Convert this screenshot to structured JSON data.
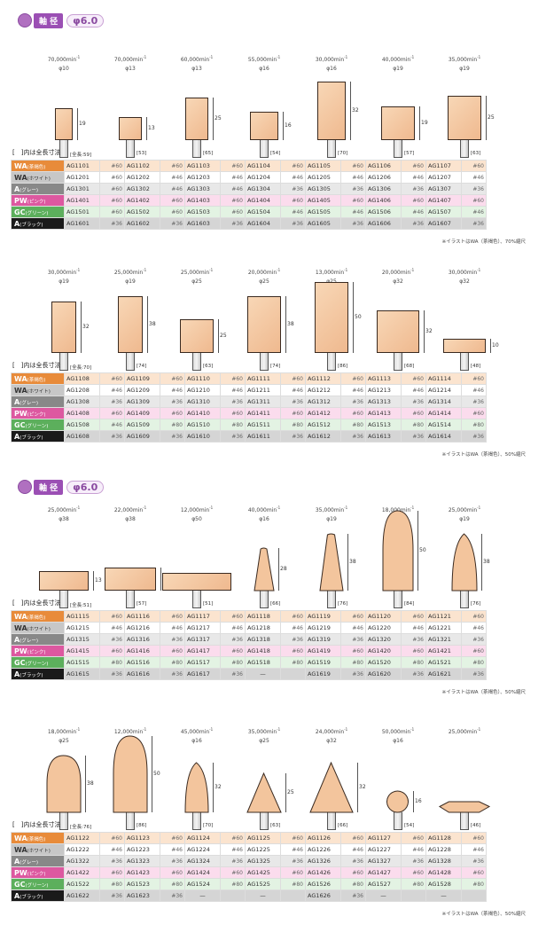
{
  "header": {
    "tag": "軸 径",
    "diameter": "φ6.0"
  },
  "note": "[　]内は全長寸法",
  "rows": [
    {
      "cls": "r-wa",
      "label": "WA",
      "sub": "(茶褐色)"
    },
    {
      "cls": "r-wh",
      "label": "WA",
      "sub": "(ホワイト)"
    },
    {
      "cls": "r-gr",
      "label": "A",
      "sub": "(グレー)"
    },
    {
      "cls": "r-pw",
      "label": "PW",
      "sub": "(ピンク)"
    },
    {
      "cls": "r-gc",
      "label": "GC",
      "sub": "(グリーン)"
    },
    {
      "cls": "r-bk",
      "label": "A",
      "sub": "(ブラック)"
    }
  ],
  "sections": [
    {
      "footer": "※イラストはWA（茶褐色）、70%縮尺",
      "items": [
        {
          "rpm": "70,000min",
          "d": "φ10",
          "h": "19",
          "total": "[全長:59]",
          "codes": [
            [
              "AG1101",
              "#60"
            ],
            [
              "AG1201",
              "#60"
            ],
            [
              "AG1301",
              "#60"
            ],
            [
              "AG1401",
              "#60"
            ],
            [
              "AG1501",
              "#60"
            ],
            [
              "AG1601",
              "#36"
            ]
          ]
        },
        {
          "rpm": "70,000min",
          "d": "φ13",
          "h": "13",
          "total": "[53]",
          "codes": [
            [
              "AG1102",
              "#60"
            ],
            [
              "AG1202",
              "#46"
            ],
            [
              "AG1302",
              "#46"
            ],
            [
              "AG1402",
              "#60"
            ],
            [
              "AG1502",
              "#60"
            ],
            [
              "AG1602",
              "#36"
            ]
          ]
        },
        {
          "rpm": "60,000min",
          "d": "φ13",
          "h": "25",
          "total": "[65]",
          "codes": [
            [
              "AG1103",
              "#60"
            ],
            [
              "AG1203",
              "#46"
            ],
            [
              "AG1303",
              "#46"
            ],
            [
              "AG1403",
              "#60"
            ],
            [
              "AG1503",
              "#60"
            ],
            [
              "AG1603",
              "#36"
            ]
          ]
        },
        {
          "rpm": "55,000min",
          "d": "φ16",
          "h": "16",
          "total": "[54]",
          "codes": [
            [
              "AG1104",
              "#60"
            ],
            [
              "AG1204",
              "#46"
            ],
            [
              "AG1304",
              "#36"
            ],
            [
              "AG1404",
              "#60"
            ],
            [
              "AG1504",
              "#46"
            ],
            [
              "AG1604",
              "#36"
            ]
          ]
        },
        {
          "rpm": "30,000min",
          "d": "φ16",
          "h": "32",
          "total": "[70]",
          "codes": [
            [
              "AG1105",
              "#60"
            ],
            [
              "AG1205",
              "#46"
            ],
            [
              "AG1305",
              "#36"
            ],
            [
              "AG1405",
              "#60"
            ],
            [
              "AG1505",
              "#46"
            ],
            [
              "AG1605",
              "#36"
            ]
          ]
        },
        {
          "rpm": "40,000min",
          "d": "φ19",
          "h": "19",
          "total": "[57]",
          "codes": [
            [
              "AG1106",
              "#60"
            ],
            [
              "AG1206",
              "#46"
            ],
            [
              "AG1306",
              "#36"
            ],
            [
              "AG1406",
              "#60"
            ],
            [
              "AG1506",
              "#46"
            ],
            [
              "AG1606",
              "#36"
            ]
          ]
        },
        {
          "rpm": "35,000min",
          "d": "φ19",
          "h": "25",
          "total": "[63]",
          "codes": [
            [
              "AG1107",
              "#60"
            ],
            [
              "AG1207",
              "#46"
            ],
            [
              "AG1307",
              "#36"
            ],
            [
              "AG1407",
              "#60"
            ],
            [
              "AG1507",
              "#46"
            ],
            [
              "AG1607",
              "#36"
            ]
          ]
        }
      ]
    },
    {
      "footer": "※イラストはWA（茶褐色）、50%縮尺",
      "items": [
        {
          "rpm": "30,000min",
          "d": "φ19",
          "h": "32",
          "total": "[全長:70]",
          "codes": [
            [
              "AG1108",
              "#60"
            ],
            [
              "AG1208",
              "#46"
            ],
            [
              "AG1308",
              "#36"
            ],
            [
              "AG1408",
              "#60"
            ],
            [
              "AG1508",
              "#46"
            ],
            [
              "AG1608",
              "#36"
            ]
          ]
        },
        {
          "rpm": "25,000min",
          "d": "φ19",
          "h": "38",
          "total": "[74]",
          "codes": [
            [
              "AG1109",
              "#60"
            ],
            [
              "AG1209",
              "#46"
            ],
            [
              "AG1309",
              "#36"
            ],
            [
              "AG1409",
              "#60"
            ],
            [
              "AG1509",
              "#80"
            ],
            [
              "AG1609",
              "#36"
            ]
          ]
        },
        {
          "rpm": "25,000min",
          "d": "φ25",
          "h": "25",
          "total": "[63]",
          "codes": [
            [
              "AG1110",
              "#60"
            ],
            [
              "AG1210",
              "#46"
            ],
            [
              "AG1310",
              "#36"
            ],
            [
              "AG1410",
              "#60"
            ],
            [
              "AG1510",
              "#80"
            ],
            [
              "AG1610",
              "#36"
            ]
          ]
        },
        {
          "rpm": "20,000min",
          "d": "φ25",
          "h": "38",
          "total": "[74]",
          "codes": [
            [
              "AG1111",
              "#60"
            ],
            [
              "AG1211",
              "#46"
            ],
            [
              "AG1311",
              "#36"
            ],
            [
              "AG1411",
              "#60"
            ],
            [
              "AG1511",
              "#80"
            ],
            [
              "AG1611",
              "#36"
            ]
          ]
        },
        {
          "rpm": "13,000min",
          "d": "φ25",
          "h": "50",
          "total": "[86]",
          "codes": [
            [
              "AG1112",
              "#60"
            ],
            [
              "AG1212",
              "#46"
            ],
            [
              "AG1312",
              "#36"
            ],
            [
              "AG1412",
              "#60"
            ],
            [
              "AG1512",
              "#80"
            ],
            [
              "AG1612",
              "#36"
            ]
          ]
        },
        {
          "rpm": "20,000min",
          "d": "φ32",
          "h": "32",
          "total": "[68]",
          "codes": [
            [
              "AG1113",
              "#60"
            ],
            [
              "AG1213",
              "#46"
            ],
            [
              "AG1313",
              "#36"
            ],
            [
              "AG1413",
              "#60"
            ],
            [
              "AG1513",
              "#80"
            ],
            [
              "AG1613",
              "#36"
            ]
          ]
        },
        {
          "rpm": "30,000min",
          "d": "φ32",
          "h": "10",
          "total": "[48]",
          "codes": [
            [
              "AG1114",
              "#60"
            ],
            [
              "AG1214",
              "#46"
            ],
            [
              "AG1314",
              "#36"
            ],
            [
              "AG1414",
              "#60"
            ],
            [
              "AG1514",
              "#80"
            ],
            [
              "AG1614",
              "#36"
            ]
          ]
        }
      ]
    },
    {
      "footer": "※イラストはWA（茶褐色）、50%縮尺",
      "items": [
        {
          "rpm": "25,000min",
          "d": "φ38",
          "h": "13",
          "total": "[全長:51]",
          "codes": [
            [
              "AG1115",
              "#60"
            ],
            [
              "AG1215",
              "#46"
            ],
            [
              "AG1315",
              "#36"
            ],
            [
              "AG1415",
              "#60"
            ],
            [
              "AG1515",
              "#80"
            ],
            [
              "AG1615",
              "#36"
            ]
          ]
        },
        {
          "rpm": "22,000min",
          "d": "φ38",
          "h": "19",
          "total": "[57]",
          "codes": [
            [
              "AG1116",
              "#60"
            ],
            [
              "AG1216",
              "#46"
            ],
            [
              "AG1316",
              "#36"
            ],
            [
              "AG1416",
              "#60"
            ],
            [
              "AG1516",
              "#80"
            ],
            [
              "AG1616",
              "#36"
            ]
          ]
        },
        {
          "rpm": "12,000min",
          "d": "φ50",
          "h": "",
          "total": "[51]",
          "codes": [
            [
              "AG1117",
              "#60"
            ],
            [
              "AG1217",
              "#46"
            ],
            [
              "AG1317",
              "#36"
            ],
            [
              "AG1417",
              "#60"
            ],
            [
              "AG1517",
              "#80"
            ],
            [
              "AG1617",
              "#36"
            ]
          ]
        },
        {
          "rpm": "40,000min",
          "d": "φ16",
          "h": "28",
          "total": "[66]",
          "codes": [
            [
              "AG1118",
              "#60"
            ],
            [
              "AG1218",
              "#46"
            ],
            [
              "AG1318",
              "#36"
            ],
            [
              "AG1418",
              "#60"
            ],
            [
              "AG1518",
              "#80"
            ],
            [
              "—",
              ""
            ]
          ]
        },
        {
          "rpm": "35,000min",
          "d": "φ19",
          "h": "38",
          "total": "[76]",
          "codes": [
            [
              "AG1119",
              "#60"
            ],
            [
              "AG1219",
              "#46"
            ],
            [
              "AG1319",
              "#36"
            ],
            [
              "AG1419",
              "#60"
            ],
            [
              "AG1519",
              "#80"
            ],
            [
              "AG1619",
              "#36"
            ]
          ]
        },
        {
          "rpm": "18,000min",
          "d": "φ25",
          "h": "50",
          "total": "[84]",
          "codes": [
            [
              "AG1120",
              "#60"
            ],
            [
              "AG1220",
              "#46"
            ],
            [
              "AG1320",
              "#36"
            ],
            [
              "AG1420",
              "#60"
            ],
            [
              "AG1520",
              "#80"
            ],
            [
              "AG1620",
              "#36"
            ]
          ]
        },
        {
          "rpm": "25,000min",
          "d": "φ19",
          "h": "38",
          "total": "[76]",
          "codes": [
            [
              "AG1121",
              "#60"
            ],
            [
              "AG1221",
              "#46"
            ],
            [
              "AG1321",
              "#36"
            ],
            [
              "AG1421",
              "#60"
            ],
            [
              "AG1521",
              "#80"
            ],
            [
              "AG1621",
              "#36"
            ]
          ]
        }
      ]
    },
    {
      "footer": "※イラストはWA（茶褐色）、50%縮尺",
      "items": [
        {
          "rpm": "18,000min",
          "d": "φ25",
          "h": "38",
          "total": "[全長:76]",
          "codes": [
            [
              "AG1122",
              "#60"
            ],
            [
              "AG1222",
              "#46"
            ],
            [
              "AG1322",
              "#36"
            ],
            [
              "AG1422",
              "#60"
            ],
            [
              "AG1522",
              "#80"
            ],
            [
              "AG1622",
              "#36"
            ]
          ]
        },
        {
          "rpm": "12,000min",
          "d": "φ25",
          "h": "50",
          "total": "[86]",
          "codes": [
            [
              "AG1123",
              "#60"
            ],
            [
              "AG1223",
              "#46"
            ],
            [
              "AG1323",
              "#36"
            ],
            [
              "AG1423",
              "#60"
            ],
            [
              "AG1523",
              "#80"
            ],
            [
              "AG1623",
              "#36"
            ]
          ]
        },
        {
          "rpm": "45,000min",
          "d": "φ16",
          "h": "32",
          "total": "[70]",
          "codes": [
            [
              "AG1124",
              "#60"
            ],
            [
              "AG1224",
              "#46"
            ],
            [
              "AG1324",
              "#36"
            ],
            [
              "AG1424",
              "#60"
            ],
            [
              "AG1524",
              "#80"
            ],
            [
              "—",
              ""
            ]
          ]
        },
        {
          "rpm": "35,000min",
          "d": "φ25",
          "h": "25",
          "total": "[63]",
          "codes": [
            [
              "AG1125",
              "#60"
            ],
            [
              "AG1225",
              "#46"
            ],
            [
              "AG1325",
              "#36"
            ],
            [
              "AG1425",
              "#60"
            ],
            [
              "AG1525",
              "#80"
            ],
            [
              "—",
              ""
            ]
          ]
        },
        {
          "rpm": "24,000min",
          "d": "φ32",
          "h": "32",
          "total": "[66]",
          "codes": [
            [
              "AG1126",
              "#60"
            ],
            [
              "AG1226",
              "#46"
            ],
            [
              "AG1326",
              "#36"
            ],
            [
              "AG1426",
              "#60"
            ],
            [
              "AG1526",
              "#80"
            ],
            [
              "AG1626",
              "#36"
            ]
          ]
        },
        {
          "rpm": "50,000min",
          "d": "φ16",
          "h": "16",
          "total": "[54]",
          "codes": [
            [
              "AG1127",
              "#60"
            ],
            [
              "AG1227",
              "#46"
            ],
            [
              "AG1327",
              "#36"
            ],
            [
              "AG1427",
              "#60"
            ],
            [
              "AG1527",
              "#80"
            ],
            [
              "—",
              ""
            ]
          ]
        },
        {
          "rpm": "25,000min",
          "d": "",
          "h": "",
          "total": "[46]",
          "codes": [
            [
              "AG1128",
              "#60"
            ],
            [
              "AG1228",
              "#46"
            ],
            [
              "AG1328",
              "#36"
            ],
            [
              "AG1428",
              "#60"
            ],
            [
              "AG1528",
              "#80"
            ],
            [
              "—",
              ""
            ]
          ]
        }
      ]
    }
  ]
}
